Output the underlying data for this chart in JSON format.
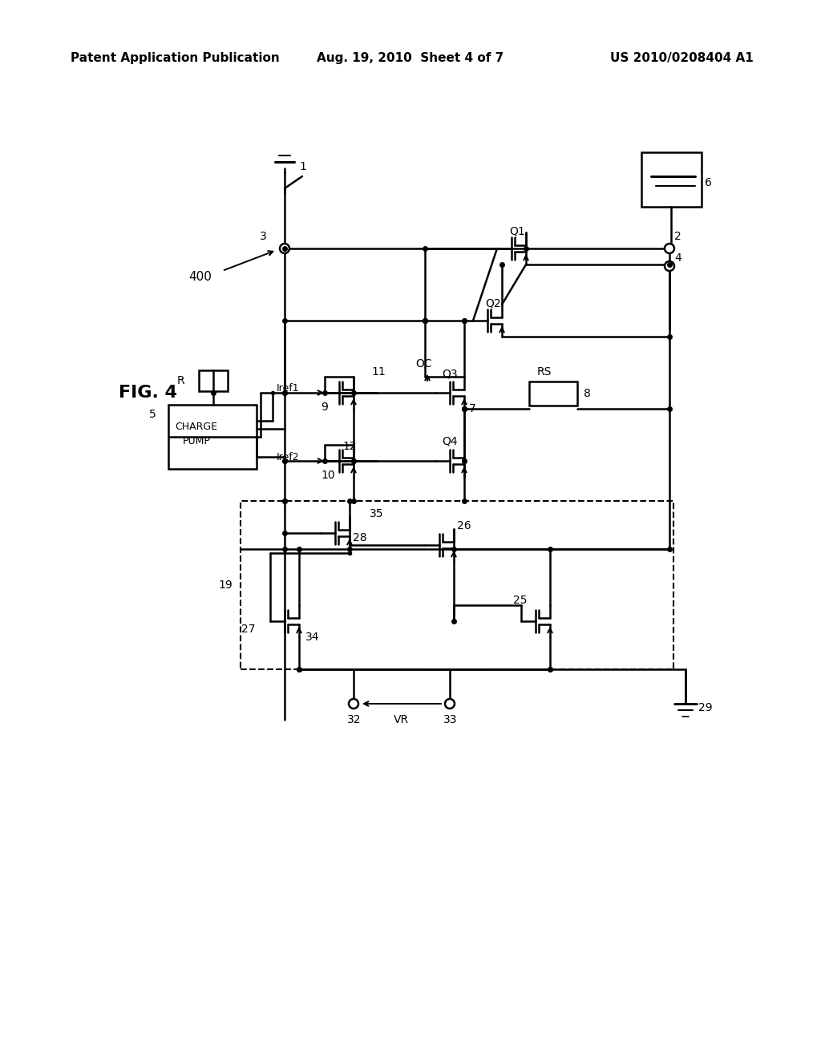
{
  "bg": "#ffffff",
  "header_left": "Patent Application Publication",
  "header_mid": "Aug. 19, 2010  Sheet 4 of 7",
  "header_right": "US 2010/0208404 A1",
  "fig_label": "FIG. 4",
  "line_width": 1.8
}
